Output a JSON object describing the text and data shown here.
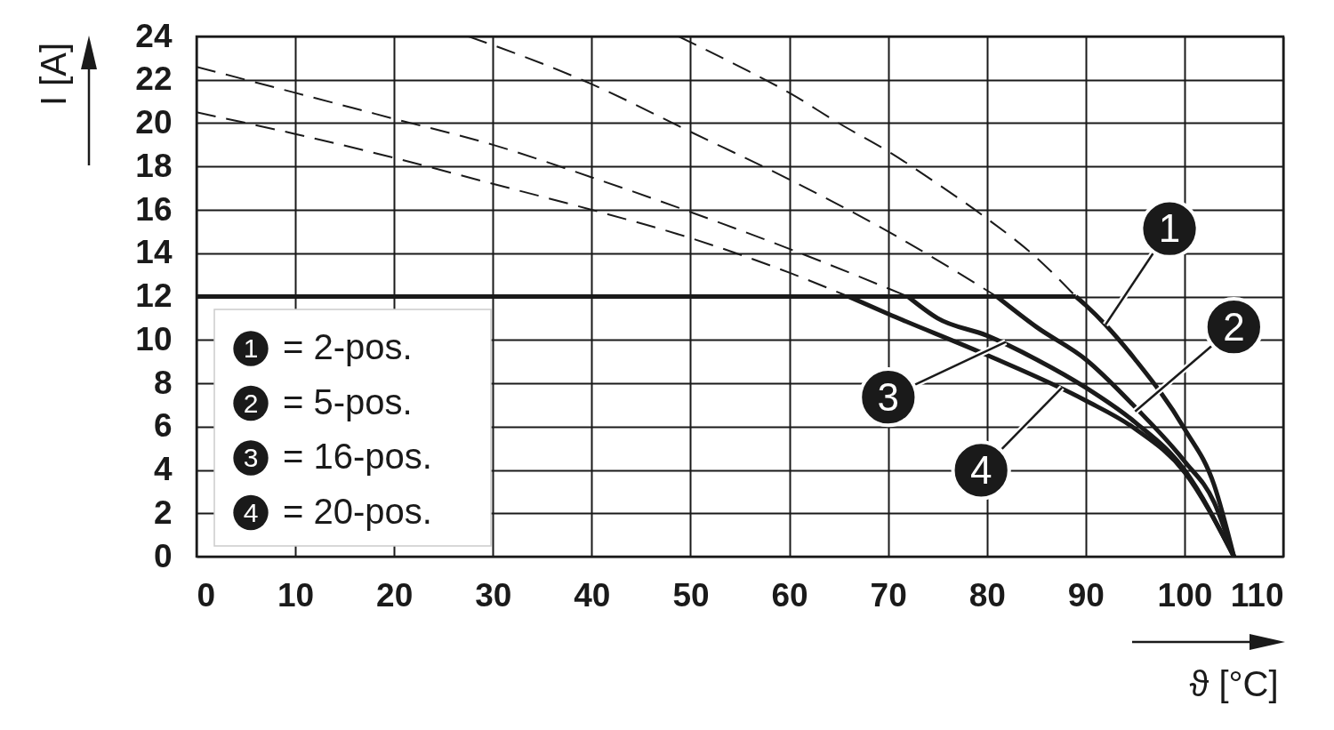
{
  "chart_data": {
    "type": "line",
    "xlabel": "ϑ [°C]",
    "ylabel": "I [A]",
    "xlim": [
      0,
      110
    ],
    "ylim": [
      0,
      24
    ],
    "xticks": [
      0,
      10,
      20,
      30,
      40,
      50,
      60,
      70,
      80,
      90,
      100,
      110
    ],
    "yticks": [
      0,
      2,
      4,
      6,
      8,
      10,
      12,
      14,
      16,
      18,
      20,
      22,
      24
    ],
    "grid": true,
    "legend": "bottom left",
    "series": [
      {
        "name": "= 2-pos.",
        "color": "#1a1a1a",
        "line_style": "solid",
        "x": [
          89,
          90,
          92,
          95,
          100,
          103,
          105
        ],
        "values": [
          12,
          11.6,
          10.7,
          9.1,
          5.9,
          3.3,
          0
        ]
      },
      {
        "name": "= 5-pos.",
        "color": "#1a1a1a",
        "line_style": "solid",
        "x": [
          81,
          85,
          90,
          95,
          100,
          103,
          105
        ],
        "values": [
          12,
          10.6,
          9.1,
          6.9,
          4.4,
          2.5,
          0
        ]
      },
      {
        "name": "= 16-pos.",
        "color": "#1a1a1a",
        "line_style": "solid",
        "x": [
          72,
          75,
          80,
          85,
          90,
          95,
          100,
          105
        ],
        "values": [
          12,
          11,
          10.2,
          9.1,
          7.8,
          6.2,
          4,
          0
        ]
      },
      {
        "name": "= 20-pos.",
        "color": "#1a1a1a",
        "line_style": "solid",
        "x": [
          66,
          70,
          80,
          90,
          95,
          100,
          105
        ],
        "values": [
          12,
          11.2,
          9.3,
          7.2,
          5.9,
          3.9,
          0
        ]
      },
      {
        "color": "#1a1a1a",
        "line_style": "solid",
        "x": [
          0,
          89
        ],
        "values": [
          12,
          12
        ]
      },
      {
        "color": "#1a1a1a",
        "line_style": "dashed",
        "x": [
          48.8,
          55,
          60,
          65,
          70,
          75,
          80,
          85,
          89
        ],
        "values": [
          24,
          22.6,
          21.4,
          20,
          18.7,
          17.2,
          15.6,
          13.8,
          12
        ]
      },
      {
        "color": "#1a1a1a",
        "line_style": "dashed",
        "x": [
          27.5,
          30,
          40,
          50,
          60,
          70,
          81
        ],
        "values": [
          24,
          23.6,
          21.8,
          19.6,
          17.4,
          15,
          12
        ]
      },
      {
        "color": "#1a1a1a",
        "line_style": "dashed",
        "x": [
          0,
          10,
          20,
          30,
          40,
          50,
          60,
          72
        ],
        "values": [
          22.6,
          21.4,
          20.2,
          19,
          17.5,
          15.9,
          14.2,
          12
        ]
      },
      {
        "color": "#1a1a1a",
        "line_style": "dashed",
        "x": [
          0,
          10,
          20,
          30,
          40,
          50,
          60,
          66
        ],
        "values": [
          20.5,
          19.5,
          18.4,
          17.2,
          16,
          14.7,
          13.1,
          12
        ]
      }
    ],
    "annotations": [
      {
        "text": "1",
        "x": 92,
        "y": 10.7
      },
      {
        "text": "2",
        "x": 95,
        "y": 6.7
      },
      {
        "text": "3",
        "x": 81.9,
        "y": 9.9
      },
      {
        "text": "4",
        "x": 87.6,
        "y": 7.8
      }
    ]
  }
}
